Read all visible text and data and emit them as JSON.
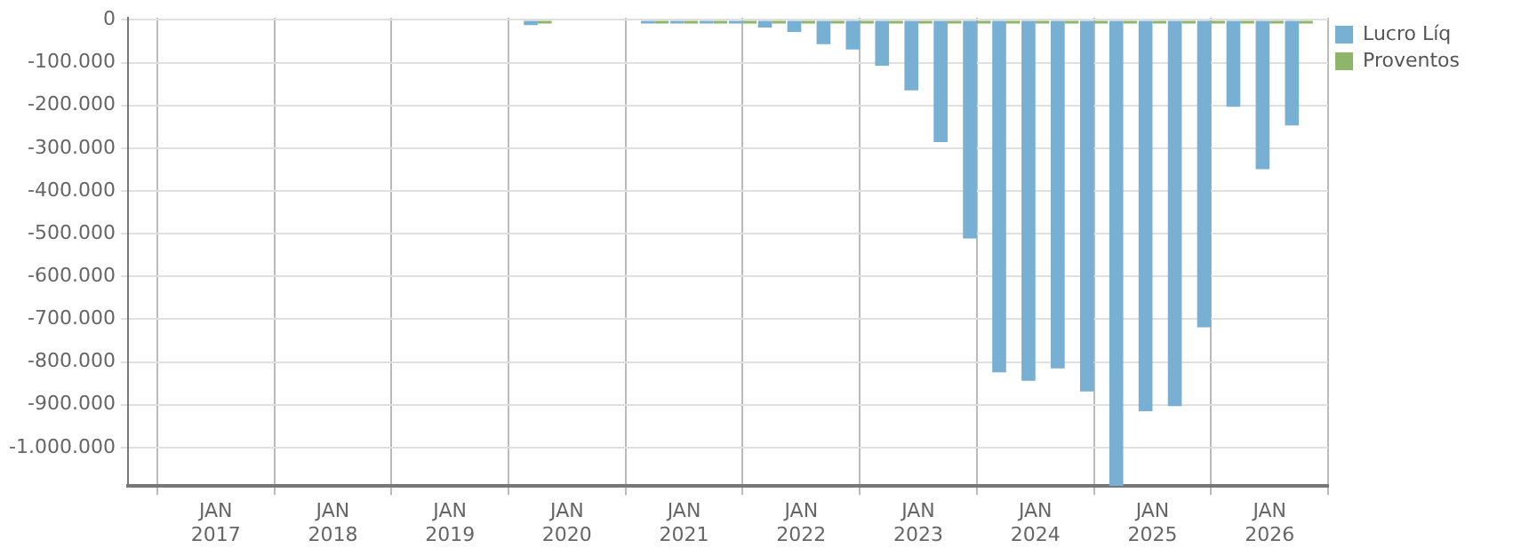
{
  "chart_data": {
    "type": "bar",
    "x": [
      "2019-10",
      "2020-01",
      "2020-04",
      "2020-07",
      "2020-10",
      "2021-01",
      "2021-04",
      "2021-07",
      "2021-10",
      "2022-01",
      "2022-04",
      "2022-07",
      "2022-10",
      "2023-01",
      "2023-04",
      "2023-07",
      "2023-10",
      "2024-01",
      "2024-04",
      "2024-07",
      "2024-10",
      "2025-01",
      "2025-04",
      "2025-07",
      "2025-10",
      "2026-01",
      "2026-04"
    ],
    "series": [
      {
        "name": "Lucro Líq",
        "color": "#77b0d2",
        "values": [
          -12000,
          null,
          null,
          null,
          -3000,
          -6000,
          -3000,
          -4000,
          -18000,
          -28000,
          -57000,
          -69000,
          -107000,
          -165000,
          -286000,
          -511000,
          -824000,
          -844000,
          -815000,
          -869000,
          -1090000,
          -915000,
          -903000,
          -719000,
          -203000,
          -349000,
          -247000
        ]
      },
      {
        "name": "Proventos",
        "color": "#8fb56a",
        "values": [
          -2000,
          null,
          null,
          null,
          -2000,
          -2000,
          -2000,
          -2000,
          -2000,
          -2000,
          -2000,
          -2000,
          -2000,
          -2000,
          -2000,
          -2000,
          -2000,
          -2000,
          -2000,
          -2000,
          -2000,
          -2000,
          -2000,
          -2000,
          -2000,
          -2000,
          -2000
        ]
      }
    ],
    "xlim": [
      "2016-04",
      "2026-07"
    ],
    "xticks": [
      {
        "value": "2017-01",
        "label": "JAN\n2017"
      },
      {
        "value": "2018-01",
        "label": "JAN\n2018"
      },
      {
        "value": "2019-01",
        "label": "JAN\n2019"
      },
      {
        "value": "2020-01",
        "label": "JAN\n2020"
      },
      {
        "value": "2021-01",
        "label": "JAN\n2021"
      },
      {
        "value": "2022-01",
        "label": "JAN\n2022"
      },
      {
        "value": "2023-01",
        "label": "JAN\n2023"
      },
      {
        "value": "2024-01",
        "label": "JAN\n2024"
      },
      {
        "value": "2025-01",
        "label": "JAN\n2025"
      },
      {
        "value": "2026-01",
        "label": "JAN\n2026"
      }
    ],
    "ylim": [
      -1090000,
      5000
    ],
    "yticks": [
      0,
      {
        "value": -100000,
        "label": "-100.000"
      },
      {
        "value": -200000,
        "label": "-200.000"
      },
      {
        "value": -300000,
        "label": "-300.000"
      },
      {
        "value": -400000,
        "label": "-400.000"
      },
      {
        "value": -500000,
        "label": "-500.000"
      },
      {
        "value": -600000,
        "label": "-600.000"
      },
      {
        "value": -700000,
        "label": "-700.000"
      },
      {
        "value": -800000,
        "label": "-800.000"
      },
      {
        "value": -900000,
        "label": "-900.000"
      },
      {
        "value": -1000000,
        "label": "-1.000.000"
      }
    ],
    "grid": true,
    "legend": "top right"
  }
}
